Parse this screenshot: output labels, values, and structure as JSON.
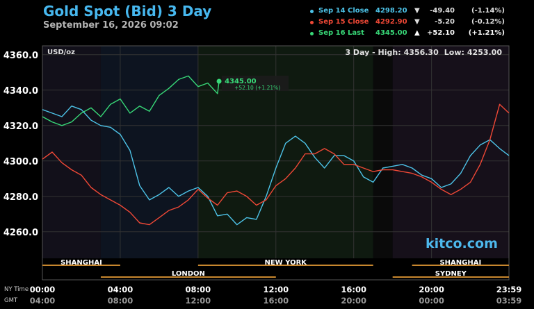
{
  "header": {
    "title": "Gold Spot (Bid) 3 Day",
    "subtitle": "September 16, 2026 09:02"
  },
  "legend": [
    {
      "label": "Sep 14 Close",
      "price": "4298.20",
      "arrow": "▼",
      "change": "-49.40",
      "pct": "(-1.14%)",
      "color": "#4dc3e8"
    },
    {
      "label": "Sep 15 Close",
      "price": "4292.90",
      "arrow": "▼",
      "change": "-5.20",
      "pct": "(-0.12%)",
      "color": "#ef4836"
    },
    {
      "label": "Sep 16 Last",
      "price": "4345.00",
      "arrow": "▲",
      "change": "+52.10",
      "pct": "(+1.21%)",
      "color": "#38d978"
    }
  ],
  "unit": "USD/oz",
  "stats": {
    "prefix": "3 Day - High:",
    "high": "4356.30",
    "low_label": "Low:",
    "low": "4253.00"
  },
  "brand": "kitco.com",
  "last_callout": {
    "price": "4345.00",
    "change": "+52.10 (+1.21%)"
  },
  "sessions_top": [
    "SHANGHAI",
    "NEW YORK",
    "SHANGHAI"
  ],
  "sessions_bottom": [
    "LONDON",
    "SYDNEY"
  ],
  "row_labels": {
    "ny": "NY Time",
    "gmt": "GMT"
  },
  "colors": {
    "day14": "#4dc3e8",
    "day15": "#ef4836",
    "day16": "#38d978",
    "session_bar": "#c8872e",
    "title": "#47b8ef"
  },
  "chart_data": {
    "type": "line",
    "title": "Gold Spot (Bid) 3 Day",
    "ylabel": "USD/oz",
    "ylim": [
      4245,
      4365
    ],
    "y_ticks": [
      "4360.0",
      "4340.0",
      "4320.0",
      "4300.0",
      "4280.0",
      "4260.0"
    ],
    "y_tick_values": [
      4360,
      4340,
      4320,
      4300,
      4280,
      4260
    ],
    "x_ticks_ny": [
      "00:00",
      "04:00",
      "08:00",
      "12:00",
      "16:00",
      "20:00",
      "23:59"
    ],
    "x_ticks_gmt": [
      "04:00",
      "08:00",
      "12:00",
      "16:00",
      "20:00",
      "00:00",
      "03:59"
    ],
    "x_tick_hours": [
      0,
      4,
      8,
      12,
      16,
      20,
      23.98
    ],
    "xlim_hours": [
      0,
      23.98
    ],
    "series": [
      {
        "name": "Sep 14 Close",
        "x": [
          0,
          0.5,
          1,
          1.5,
          2,
          2.5,
          3,
          3.5,
          4,
          4.5,
          5,
          5.5,
          6,
          6.5,
          7,
          7.5,
          8,
          8.5,
          9,
          9.5,
          10,
          10.5,
          11,
          11.5,
          12,
          12.5,
          13,
          13.5,
          14,
          14.5,
          15,
          15.5,
          16,
          16.5,
          17,
          17.5,
          18,
          18.5,
          19,
          19.5,
          20,
          20.5,
          21,
          21.5,
          22,
          22.5,
          23,
          23.5,
          24
        ],
        "values": [
          4329,
          4327,
          4325,
          4331,
          4329,
          4323,
          4320,
          4319,
          4315,
          4306,
          4286,
          4278,
          4281,
          4285,
          4280,
          4283,
          4285,
          4280,
          4269,
          4270,
          4264,
          4268,
          4267,
          4280,
          4296,
          4310,
          4314,
          4310,
          4302,
          4296,
          4303,
          4303,
          4300,
          4291,
          4288,
          4296,
          4297,
          4298,
          4296,
          4292,
          4290,
          4285,
          4287,
          4293,
          4303,
          4309,
          4312,
          4307,
          4303
        ]
      },
      {
        "name": "Sep 15 Close",
        "x": [
          0,
          0.5,
          1,
          1.5,
          2,
          2.5,
          3,
          3.5,
          4,
          4.5,
          5,
          5.5,
          6,
          6.5,
          7,
          7.5,
          8,
          8.5,
          9,
          9.5,
          10,
          10.5,
          11,
          11.5,
          12,
          12.5,
          13,
          13.5,
          14,
          14.5,
          15,
          15.5,
          16,
          16.5,
          17,
          17.5,
          18,
          18.5,
          19,
          19.5,
          20,
          20.5,
          21,
          21.5,
          22,
          22.5,
          23,
          23.5,
          24
        ],
        "values": [
          4301,
          4305,
          4299,
          4295,
          4292,
          4285,
          4281,
          4278,
          4275,
          4271,
          4265,
          4264,
          4268,
          4272,
          4274,
          4278,
          4284,
          4279,
          4275,
          4282,
          4283,
          4280,
          4275,
          4278,
          4286,
          4290,
          4296,
          4304,
          4304,
          4307,
          4304,
          4298,
          4298,
          4296,
          4294,
          4295,
          4295,
          4294,
          4293,
          4291,
          4288,
          4284,
          4281,
          4284,
          4288,
          4298,
          4312,
          4332,
          4327
        ]
      },
      {
        "name": "Sep 16 Last",
        "x": [
          0,
          0.5,
          1,
          1.5,
          2,
          2.5,
          3,
          3.5,
          4,
          4.5,
          5,
          5.5,
          6,
          6.5,
          7,
          7.5,
          8,
          8.5,
          9,
          9.08
        ],
        "values": [
          4325,
          4322,
          4320,
          4322,
          4327,
          4330,
          4325,
          4332,
          4335,
          4327,
          4331,
          4328,
          4337,
          4341,
          4346,
          4348,
          4342,
          4344,
          4338,
          4345
        ]
      }
    ],
    "sessions": [
      {
        "name": "SHANGHAI",
        "start": 0,
        "end": 4
      },
      {
        "name": "NEW YORK",
        "start": 8,
        "end": 17
      },
      {
        "name": "SHANGHAI",
        "start": 19,
        "end": 23.98
      },
      {
        "name": "LONDON",
        "start": 3,
        "end": 12
      },
      {
        "name": "SYDNEY",
        "start": 18,
        "end": 23.98
      }
    ],
    "grid": true,
    "legend_position": "top-right"
  }
}
